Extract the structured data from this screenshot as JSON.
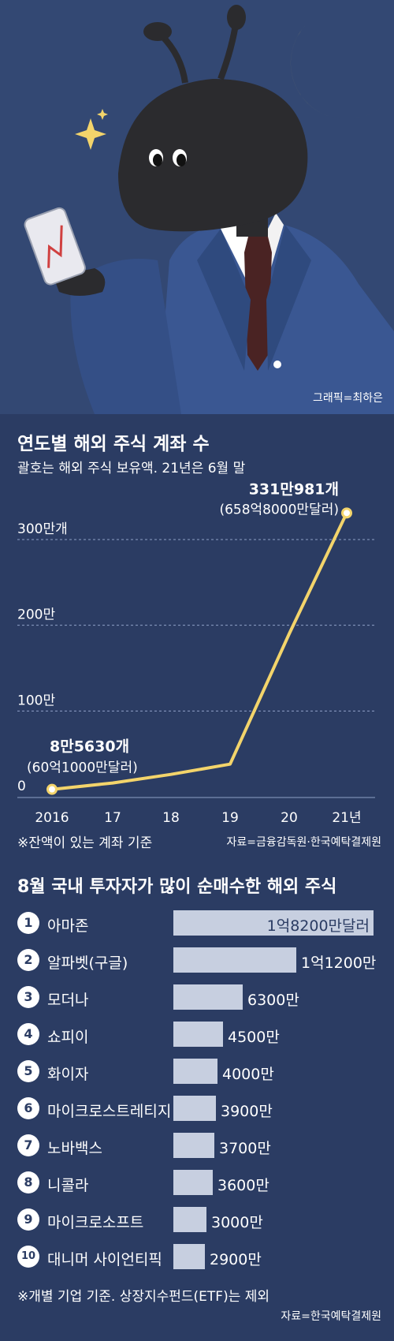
{
  "credit": "그래픽=최하은",
  "chart_data": [
    {
      "type": "line",
      "title": "연도별 해외 주식 계좌 수",
      "subtitle": "괄호는 해외 주식 보유액. 21년은 6월 말",
      "x": [
        "2016",
        "17",
        "18",
        "19",
        "20",
        "21년"
      ],
      "y": [
        86,
        160,
        260,
        380,
        1900,
        3310
      ],
      "y_unit": "천개",
      "ylim": [
        0,
        3000
      ],
      "y_ticks": [
        {
          "value": 0,
          "label": "0"
        },
        {
          "value": 1000,
          "label": "100만"
        },
        {
          "value": 2000,
          "label": "200만"
        },
        {
          "value": 3000,
          "label": "300만개"
        }
      ],
      "grid": true,
      "line_color": "#f3d46b",
      "annotations": {
        "start_value": "8만5630개",
        "start_amount": "(60억1000만달러)",
        "end_value": "331만981개",
        "end_amount": "(658억8000만달러)"
      },
      "note": "※잔액이 있는 계좌 기준",
      "source": "자료=금융감독원·한국예탁결제원"
    },
    {
      "type": "bar",
      "title": "8월 국내 투자자가 많이 순매수한 해외 주식",
      "categories": [
        "아마존",
        "알파벳(구글)",
        "모더나",
        "쇼피이",
        "화이자",
        "마이크로스트레티지",
        "노바백스",
        "니콜라",
        "마이크로소프트",
        "대니머 사이언티픽"
      ],
      "values": [
        18200,
        11200,
        6300,
        4500,
        4000,
        3900,
        3700,
        3600,
        3000,
        2900
      ],
      "value_unit": "만달러",
      "value_labels": [
        "1억8200만달러",
        "1억1200만",
        "6300만",
        "4500만",
        "4000만",
        "3900만",
        "3700만",
        "3600만",
        "3000만",
        "2900만"
      ],
      "ranks": [
        "1",
        "2",
        "3",
        "4",
        "5",
        "6",
        "7",
        "8",
        "9",
        "10"
      ],
      "bar_color": "#c7cfe0",
      "note": "※개별 기업 기준. 상장지수펀드(ETF)는 제외",
      "source": "자료=한국예탁결제원"
    }
  ]
}
